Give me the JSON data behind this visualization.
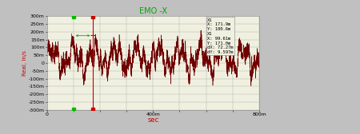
{
  "title": "EMO -X",
  "xlabel": "sec",
  "ylabel": "Real, in/s",
  "background_color": "#c0c0c0",
  "plot_bg_color": "#f0f0e0",
  "title_color": "#00aa00",
  "xlabel_color": "#cc0000",
  "ylabel_color": "#cc0000",
  "line_color": "#700000",
  "grid_color": "#999999",
  "ylim": [
    -0.3,
    0.3
  ],
  "xlim": [
    0,
    800
  ],
  "yticks": [
    -0.3,
    -0.25,
    -0.2,
    -0.15,
    -0.1,
    -0.05,
    0.0,
    0.05,
    0.1,
    0.15,
    0.2,
    0.25,
    0.3
  ],
  "ytick_labels": [
    "-300m",
    "-250m",
    "-200m",
    "-150m",
    "-100m",
    "-50m",
    "0",
    "50m",
    "100m",
    "150m",
    "200m",
    "250m",
    "300m"
  ],
  "xticks": [
    0,
    100,
    200,
    300,
    400,
    500,
    600,
    700,
    800
  ],
  "xtick_labels": [
    "0",
    "",
    "",
    "",
    "400m",
    "",
    "",
    "",
    "800m"
  ],
  "vline_x": 171.9,
  "vline_color": "#cc0000",
  "marker1_x": 99.61,
  "marker1_color": "#00bb00",
  "marker2_x": 171.9,
  "marker2_color": "#cc0000",
  "annotation_box_color": "#f0f0e0",
  "annotation_text": "X1\nX: 171.9m\nY: 180.6m\nX1\nX: 99.61m\nY: 171.0m\ndX: 72.27m\ndY: 9.597m",
  "seed": 42,
  "n_points": 3000,
  "signal_base_amplitude": 0.06,
  "signal_mid_amplitude": 0.04,
  "noise_amplitude": 0.025
}
